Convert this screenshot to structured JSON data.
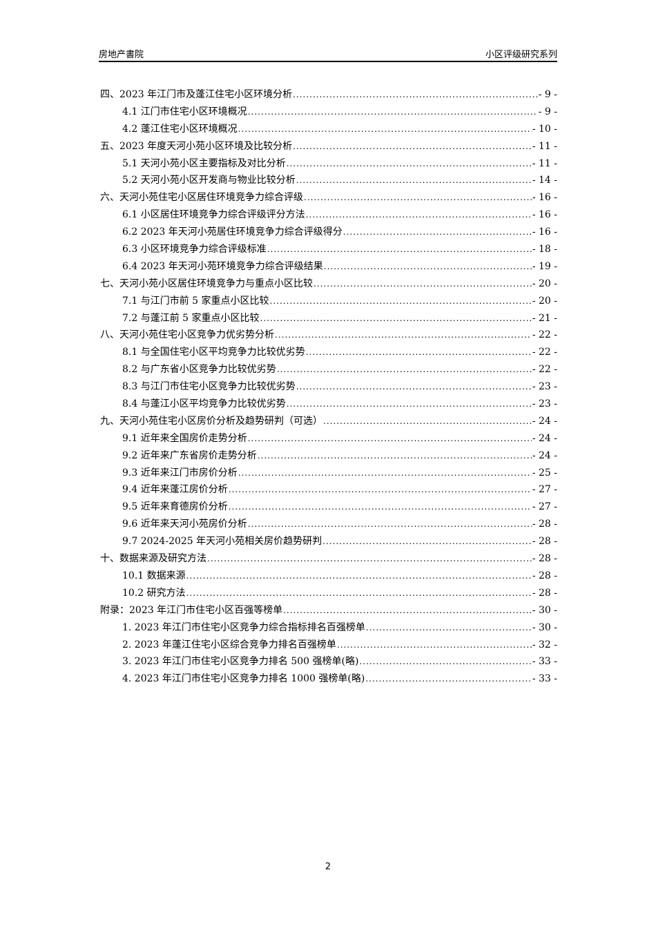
{
  "header": {
    "left": "房地产書院",
    "right": "小区评级研究系列"
  },
  "toc": [
    {
      "level": 1,
      "label": "四、2023 年江门市及蓬江住宅小区环境分析",
      "page": "- 9 -"
    },
    {
      "level": 2,
      "label": "4.1 江门市住宅小区环境概况",
      "page": "- 9 -"
    },
    {
      "level": 2,
      "label": "4.2 蓬江住宅小区环境概况",
      "page": "- 10 -"
    },
    {
      "level": 1,
      "label": "五、2023 年度天河小苑小区环境及比较分析",
      "page": "- 11 -"
    },
    {
      "level": 2,
      "label": "5.1 天河小苑小区主要指标及对比分析",
      "page": "- 11 -"
    },
    {
      "level": 2,
      "label": "5.2 天河小苑小区开发商与物业比较分析",
      "page": "- 14 -"
    },
    {
      "level": 1,
      "label": "六、天河小苑住宅小区居住环境竞争力综合评级",
      "page": "- 16 -"
    },
    {
      "level": 2,
      "label": "6.1 小区居住环境竞争力综合评级评分方法",
      "page": "- 16 -"
    },
    {
      "level": 2,
      "label": "6.2 2023 年天河小苑居住环境竞争力综合评级得分",
      "page": "- 16 -"
    },
    {
      "level": 2,
      "label": "6.3 小区环境竞争力综合评级标准",
      "page": "- 18 -"
    },
    {
      "level": 2,
      "label": "6.4 2023 年天河小苑环境竞争力综合评级结果",
      "page": "- 19 -"
    },
    {
      "level": 1,
      "label": "七、天河小苑小区居住环境竞争力与重点小区比较",
      "page": "- 20 -"
    },
    {
      "level": 2,
      "label": "7.1 与江门市前 5 家重点小区比较",
      "page": "- 20 -"
    },
    {
      "level": 2,
      "label": "7.2 与蓬江前 5 家重点小区比较",
      "page": "- 21 -"
    },
    {
      "level": 1,
      "label": "八、天河小苑住宅小区竞争力优劣势分析",
      "page": "- 22 -"
    },
    {
      "level": 2,
      "label": "8.1 与全国住宅小区平均竞争力比较优劣势",
      "page": "- 22 -"
    },
    {
      "level": 2,
      "label": "8.2 与广东省小区竞争力比较优劣势",
      "page": "- 22 -"
    },
    {
      "level": 2,
      "label": "8.3 与江门市住宅小区竞争力比较优劣势",
      "page": "- 23 -"
    },
    {
      "level": 2,
      "label": "8.4 与蓬江小区平均竞争力比较优劣势",
      "page": "- 23 -"
    },
    {
      "level": 1,
      "label": "九、天河小苑住宅小区房价分析及趋势研判（可选）",
      "page": "- 24 -"
    },
    {
      "level": 2,
      "label": "9.1 近年来全国房价走势分析",
      "page": "- 24 -"
    },
    {
      "level": 2,
      "label": "9.2 近年来广东省房价走势分析",
      "page": "- 24 -"
    },
    {
      "level": 2,
      "label": "9.3 近年来江门市房价分析",
      "page": "- 25 -"
    },
    {
      "level": 2,
      "label": "9.4 近年来蓬江房价分析",
      "page": "- 27 -"
    },
    {
      "level": 2,
      "label": "9.5 近年来育德房价分析",
      "page": "- 27 -"
    },
    {
      "level": 2,
      "label": "9.6 近年来天河小苑房价分析",
      "page": "- 28 -"
    },
    {
      "level": 2,
      "label": "9.7 2024-2025 年天河小苑相关房价趋势研判",
      "page": "- 28 -"
    },
    {
      "level": 1,
      "label": "十、数据来源及研究方法",
      "page": "- 28 -"
    },
    {
      "level": 2,
      "label": "10.1 数据来源",
      "page": "- 28 -"
    },
    {
      "level": 2,
      "label": "10.2 研究方法",
      "page": "- 28 -"
    },
    {
      "level": 1,
      "label": "附录：2023 年江门市住宅小区百强等榜单",
      "page": "- 30 -"
    },
    {
      "level": 2,
      "label": "1. 2023 年江门市住宅小区竞争力综合指标排名百强榜单",
      "page": "- 30 -"
    },
    {
      "level": 2,
      "label": "2. 2023 年蓬江住宅小区综合竞争力排名百强榜单",
      "page": "- 32 -"
    },
    {
      "level": 2,
      "label": "3. 2023 年江门市住宅小区竞争力排名 500 强榜单(略)",
      "page": "- 33 -"
    },
    {
      "level": 2,
      "label": "4. 2023 年江门市住宅小区竞争力排名 1000 强榜单(略)",
      "page": "- 33 -"
    }
  ],
  "footer": {
    "page_number": "2"
  }
}
